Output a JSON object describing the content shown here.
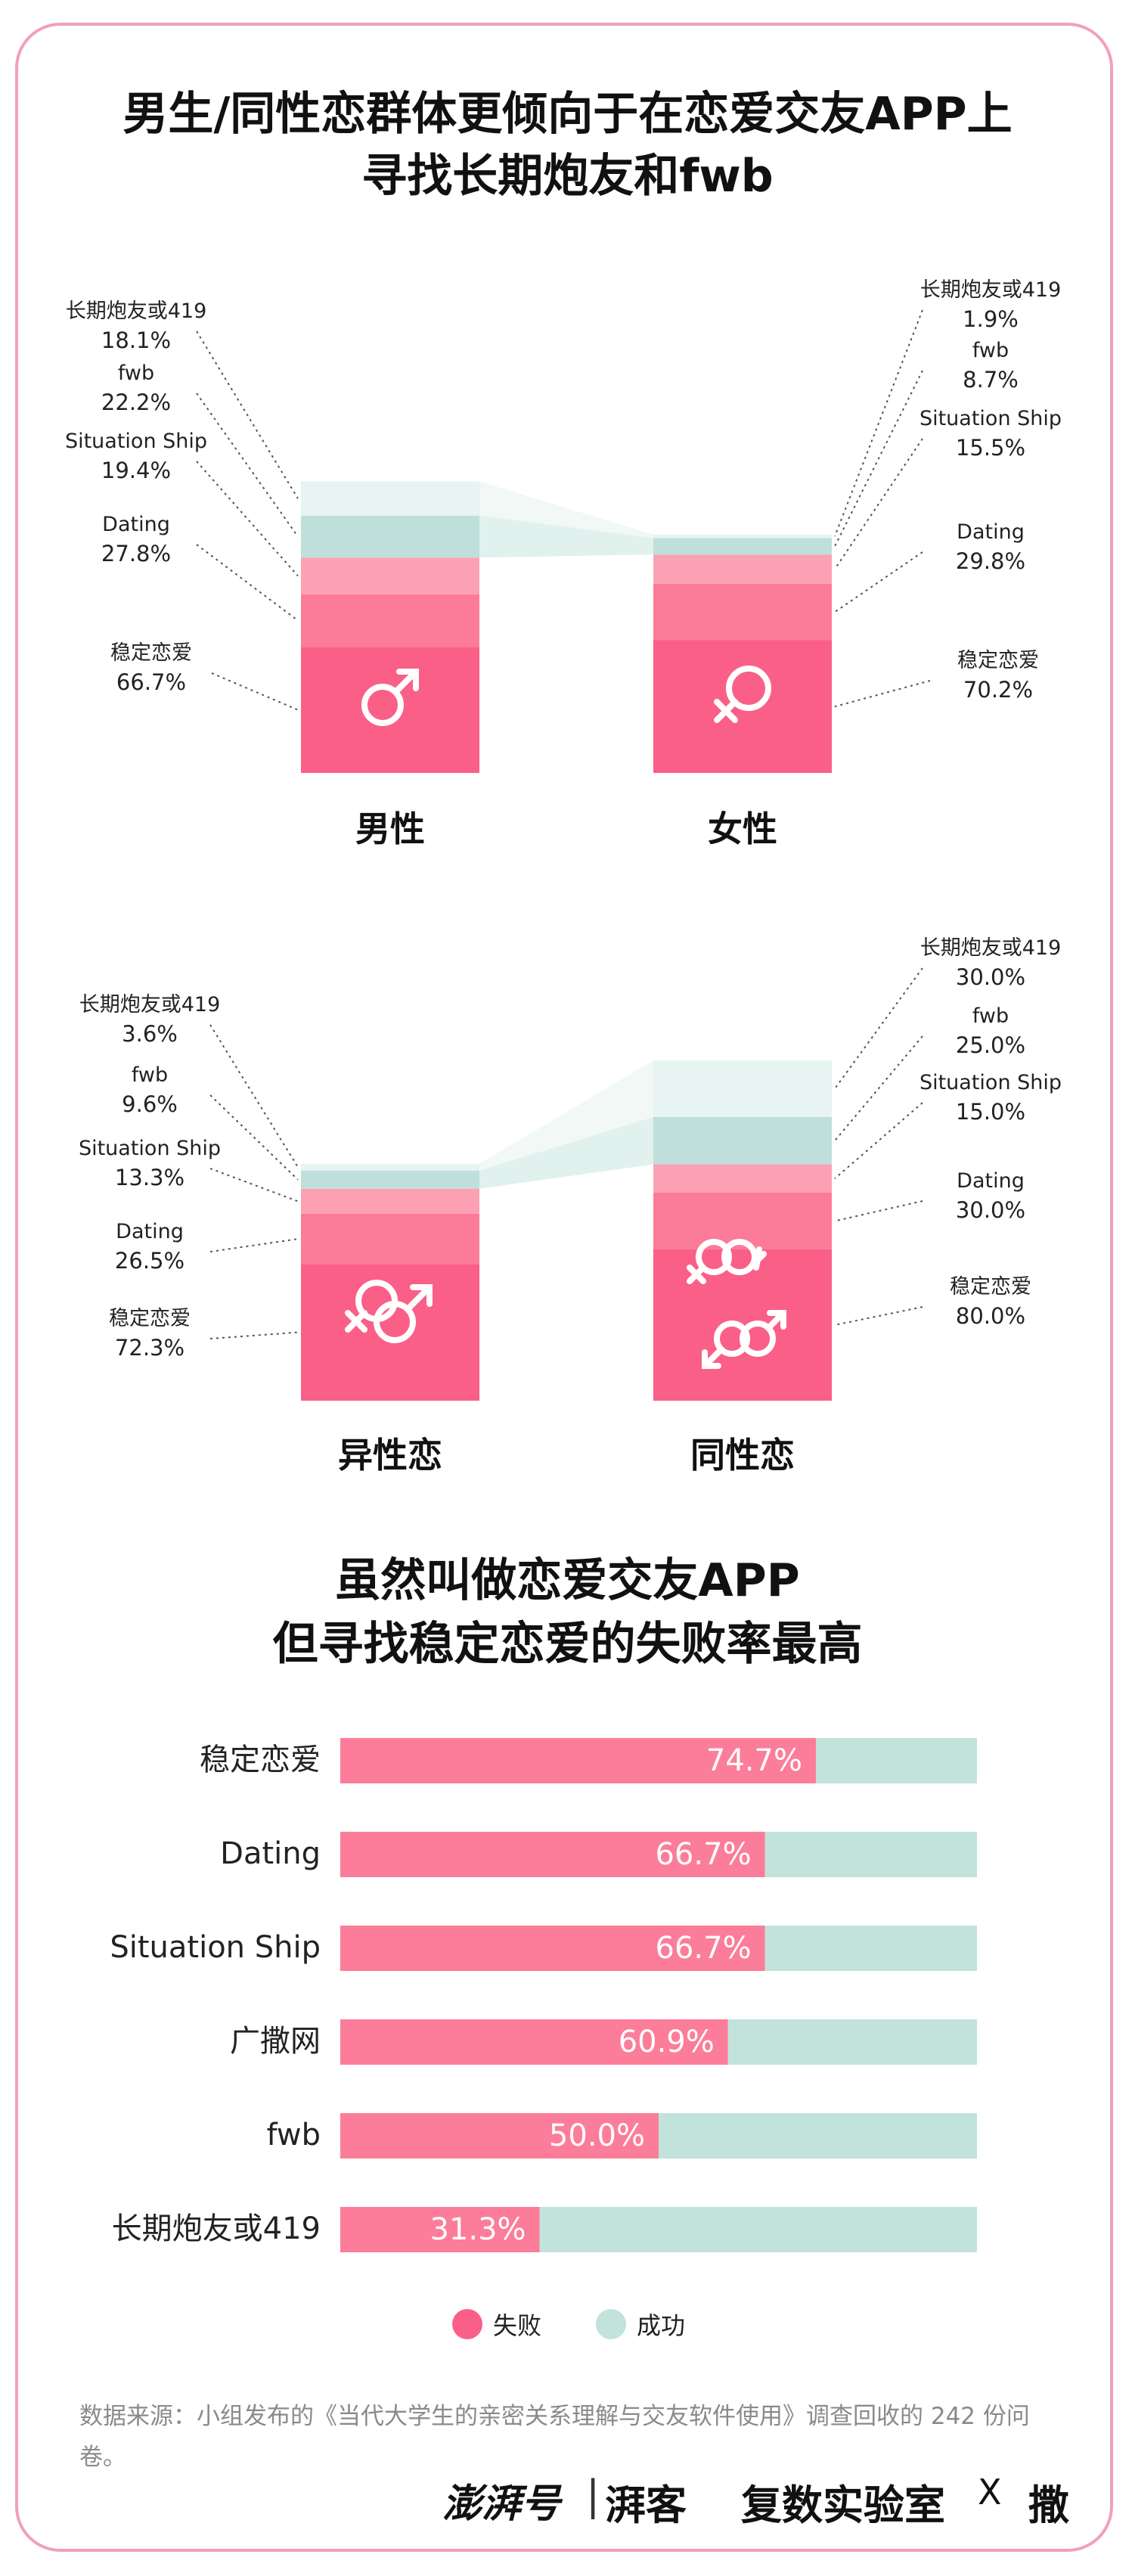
{
  "header": {
    "title_line1": "男生/同性恋群体更倾向于在恋爱交友APP上",
    "title_line2": "寻找长期炮友和fwb"
  },
  "bar_title": {
    "line1": "虽然叫做恋爱交友APP",
    "line2": "但寻找稳定恋爱的失败率最高"
  },
  "colors": {
    "long_term_fwb_419": "#e7f4f1",
    "fwb": "#bfe0da",
    "situation_ship": "#fca1b3",
    "dating": "#fb7b98",
    "stable_love": "#fa5f87",
    "fail": "#fc7d99",
    "success": "#c2e2dc",
    "frame": "#f2a0b6"
  },
  "chart_data": [
    {
      "type": "bar",
      "subtype": "stacked",
      "categories": [
        "男性",
        "女性"
      ],
      "icons": [
        "male-icon",
        "female-icon"
      ],
      "series": [
        {
          "name": "稳定恋爱",
          "values": [
            66.7,
            70.2
          ],
          "labels": [
            "66.7%",
            "70.2%"
          ]
        },
        {
          "name": "Dating",
          "values": [
            27.8,
            29.8
          ],
          "labels": [
            "27.8%",
            "29.8%"
          ]
        },
        {
          "name": "Situation Ship",
          "values": [
            19.4,
            15.5
          ],
          "labels": [
            "19.4%",
            "15.5%"
          ]
        },
        {
          "name": "fwb",
          "values": [
            22.2,
            8.7
          ],
          "labels": [
            "22.2%",
            "8.7%"
          ]
        },
        {
          "name": "长期炮友或419",
          "values": [
            18.1,
            1.9
          ],
          "labels": [
            "18.1%",
            "1.9%"
          ]
        }
      ]
    },
    {
      "type": "bar",
      "subtype": "stacked",
      "categories": [
        "异性恋",
        "同性恋"
      ],
      "icons": [
        "heterosexual-icon",
        "homosexual-icon"
      ],
      "series": [
        {
          "name": "稳定恋爱",
          "values": [
            72.3,
            80.0
          ],
          "labels": [
            "72.3%",
            "80.0%"
          ]
        },
        {
          "name": "Dating",
          "values": [
            26.5,
            30.0
          ],
          "labels": [
            "26.5%",
            "30.0%"
          ]
        },
        {
          "name": "Situation Ship",
          "values": [
            13.3,
            15.0
          ],
          "labels": [
            "13.3%",
            "15.0%"
          ]
        },
        {
          "name": "fwb",
          "values": [
            9.6,
            25.0
          ],
          "labels": [
            "9.6%",
            "25.0%"
          ]
        },
        {
          "name": "长期炮友或419",
          "values": [
            3.6,
            30.0
          ],
          "labels": [
            "3.6%",
            "30.0%"
          ]
        }
      ]
    },
    {
      "type": "bar",
      "subtype": "horizontal-stacked-100",
      "categories": [
        "稳定恋爱",
        "Dating",
        "Situation Ship",
        "广撒网",
        "fwb",
        "长期炮友或419"
      ],
      "series": [
        {
          "name": "失败",
          "values": [
            74.7,
            66.7,
            66.7,
            60.9,
            50.0,
            31.3
          ],
          "labels": [
            "74.7%",
            "66.7%",
            "66.7%",
            "60.9%",
            "50.0%",
            "31.3%"
          ]
        },
        {
          "name": "成功",
          "values": [
            25.3,
            33.3,
            33.3,
            39.1,
            50.0,
            68.7
          ]
        }
      ],
      "legend": [
        "失败",
        "成功"
      ],
      "legend_position": "bottom"
    }
  ],
  "footer": {
    "source": "数据来源：小组发布的《当代大学生的亲密关系理解与交友软件使用》调查回收的 242 份问卷。",
    "logo_a": "澎湃号",
    "logo_divider": "|",
    "logo_b": "湃客",
    "logo_c": "复数实验室",
    "logo_x": "X",
    "logo_d": "撒"
  }
}
